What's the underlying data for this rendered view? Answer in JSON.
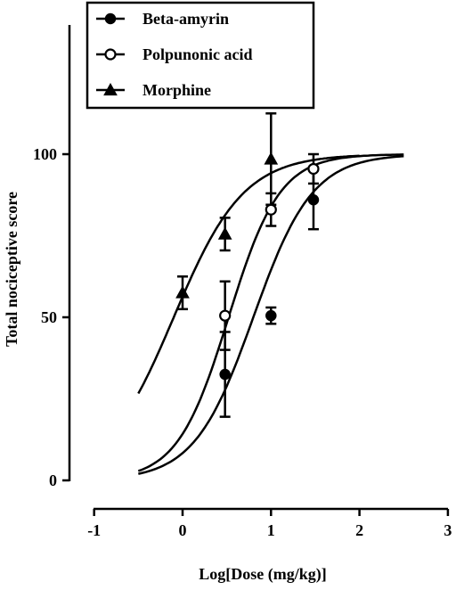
{
  "chart_data": {
    "type": "scatter",
    "title": "",
    "xlabel": "Log[Dose (mg/kg)]",
    "ylabel": "Total nociceptive score",
    "xlim": [
      -1,
      3
    ],
    "ylim": [
      0,
      140
    ],
    "x_ticks": [
      -1,
      0,
      1,
      2,
      3
    ],
    "y_ticks": [
      0,
      50,
      100
    ],
    "legend_position": "top-left",
    "grid": false,
    "series": [
      {
        "name": "Beta-amyrin",
        "marker": "filled-circle",
        "points": [
          {
            "x": 0.48,
            "y": 32.5,
            "err": 13
          },
          {
            "x": 1.0,
            "y": 50.5,
            "err": 2.5
          },
          {
            "x": 1.48,
            "y": 86,
            "err": 9
          }
        ],
        "curve": {
          "ec50_log": 0.8,
          "hill": 1.3,
          "bottom": 0,
          "top": 100,
          "x_range": [
            -0.5,
            2.5
          ]
        }
      },
      {
        "name": "Polpunonic acid",
        "marker": "open-circle",
        "points": [
          {
            "x": 0.48,
            "y": 50.5,
            "err": 10.5
          },
          {
            "x": 1.0,
            "y": 83,
            "err": 5
          },
          {
            "x": 1.48,
            "y": 95.5,
            "err": 4.5
          }
        ],
        "curve": {
          "ec50_log": 0.52,
          "hill": 1.5,
          "bottom": 0,
          "top": 100,
          "x_range": [
            -0.5,
            2.5
          ]
        }
      },
      {
        "name": "Morphine",
        "marker": "filled-triangle",
        "points": [
          {
            "x": 0.0,
            "y": 57.5,
            "err": 5
          },
          {
            "x": 0.48,
            "y": 75.5,
            "err": 5
          },
          {
            "x": 1.0,
            "y": 98.5,
            "err": 14
          }
        ],
        "curve": {
          "ec50_log": -0.1,
          "hill": 1.1,
          "bottom": 0,
          "top": 100,
          "x_range": [
            -0.5,
            2.0
          ]
        }
      }
    ]
  }
}
